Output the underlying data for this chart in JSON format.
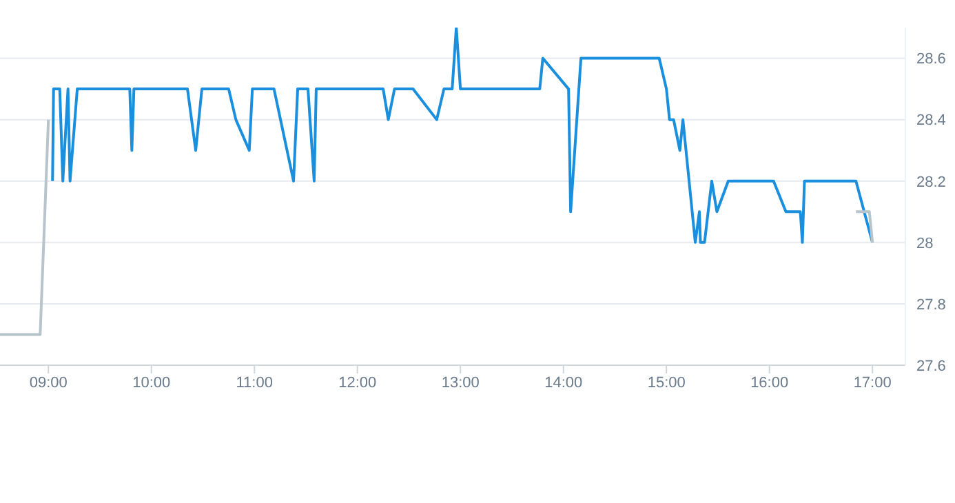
{
  "chart_data": {
    "type": "line",
    "xlim": [
      8.53,
      17.32
    ],
    "ylim": [
      27.6,
      28.7
    ],
    "xticks": [
      {
        "value": 9,
        "label": "09:00"
      },
      {
        "value": 10,
        "label": "10:00"
      },
      {
        "value": 11,
        "label": "11:00"
      },
      {
        "value": 12,
        "label": "12:00"
      },
      {
        "value": 13,
        "label": "13:00"
      },
      {
        "value": 14,
        "label": "14:00"
      },
      {
        "value": 15,
        "label": "15:00"
      },
      {
        "value": 16,
        "label": "16:00"
      },
      {
        "value": 17,
        "label": "17:00"
      }
    ],
    "yticks": [
      27.6,
      27.8,
      28,
      28.2,
      28.4,
      28.6
    ],
    "grid": "y",
    "legend": false,
    "marker": "none",
    "line_style": "solid",
    "series": [
      {
        "color": "#b8c4cc",
        "x": [
          8.53,
          8.92,
          9.0
        ],
        "values": [
          27.7,
          27.7,
          28.4
        ]
      },
      {
        "color": "#1a8fdd",
        "x": [
          9.04,
          9.05,
          9.11,
          9.14,
          9.19,
          9.21,
          9.28,
          9.79,
          9.81,
          9.83,
          10.35,
          10.43,
          10.49,
          10.75,
          10.82,
          10.95,
          10.98,
          11.19,
          11.38,
          11.42,
          11.52,
          11.58,
          11.6,
          12.25,
          12.3,
          12.36,
          12.54,
          12.77,
          12.84,
          12.92,
          12.96,
          13.0,
          13.77,
          13.8,
          14.05,
          14.07,
          14.17,
          14.93,
          15.0,
          15.03,
          15.07,
          15.13,
          15.16,
          15.28,
          15.32,
          15.33,
          15.37,
          15.44,
          15.49,
          15.6,
          16.04,
          16.16,
          16.3,
          16.32,
          16.34,
          16.84,
          17.0
        ],
        "values": [
          28.2,
          28.5,
          28.5,
          28.2,
          28.5,
          28.2,
          28.5,
          28.5,
          28.3,
          28.5,
          28.5,
          28.3,
          28.5,
          28.5,
          28.4,
          28.3,
          28.5,
          28.5,
          28.2,
          28.5,
          28.5,
          28.2,
          28.5,
          28.5,
          28.4,
          28.5,
          28.5,
          28.4,
          28.5,
          28.5,
          28.7,
          28.5,
          28.5,
          28.6,
          28.5,
          28.1,
          28.6,
          28.6,
          28.5,
          28.4,
          28.4,
          28.3,
          28.4,
          28.0,
          28.1,
          28.0,
          28.0,
          28.2,
          28.1,
          28.2,
          28.2,
          28.1,
          28.1,
          28.0,
          28.2,
          28.2,
          28.0
        ]
      },
      {
        "color": "#b8c4cc",
        "x": [
          16.84,
          16.97,
          17.0
        ],
        "values": [
          28.1,
          28.1,
          28.0
        ]
      }
    ]
  }
}
